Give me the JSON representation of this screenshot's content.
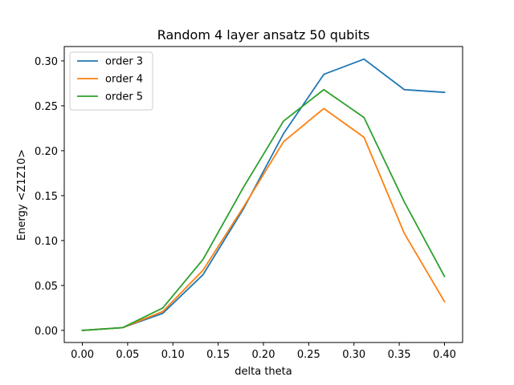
{
  "chart_data": {
    "type": "line",
    "title": "Random 4 layer ansatz 50 qubits",
    "xlabel": "delta theta",
    "ylabel": "Energy <Z1Z10>",
    "xlim": [
      -0.02,
      0.42
    ],
    "ylim": [
      -0.0135,
      0.316
    ],
    "xticks": [
      0.0,
      0.05,
      0.1,
      0.15,
      0.2,
      0.25,
      0.3,
      0.35,
      0.4
    ],
    "xtick_labels": [
      "0.00",
      "0.05",
      "0.10",
      "0.15",
      "0.20",
      "0.25",
      "0.30",
      "0.35",
      "0.40"
    ],
    "yticks": [
      0.0,
      0.05,
      0.1,
      0.15,
      0.2,
      0.25,
      0.3
    ],
    "ytick_labels": [
      "0.00",
      "0.05",
      "0.10",
      "0.15",
      "0.20",
      "0.25",
      "0.30"
    ],
    "grid": false,
    "legend_position": "top-left",
    "x": [
      0.0,
      0.0444,
      0.0889,
      0.1333,
      0.1778,
      0.2222,
      0.2667,
      0.3111,
      0.3556,
      0.4
    ],
    "series": [
      {
        "name": "order 3",
        "color": "#1f77b4",
        "values": [
          0.0,
          0.003,
          0.019,
          0.062,
          0.135,
          0.219,
          0.285,
          0.302,
          0.268,
          0.265
        ]
      },
      {
        "name": "order 4",
        "color": "#ff7f0e",
        "values": [
          0.0,
          0.003,
          0.021,
          0.067,
          0.137,
          0.21,
          0.247,
          0.215,
          0.108,
          0.032
        ]
      },
      {
        "name": "order 5",
        "color": "#2ca02c",
        "values": [
          0.0,
          0.003,
          0.025,
          0.079,
          0.159,
          0.233,
          0.268,
          0.237,
          0.143,
          0.06
        ]
      }
    ]
  }
}
